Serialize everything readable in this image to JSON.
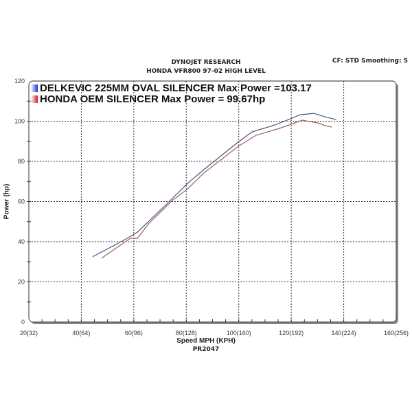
{
  "chart_data": {
    "type": "line",
    "title": "DYNOJET RESEARCH",
    "subtitle": "HONDA VFR800 97-02 HIGH LEVEL",
    "header_right": "CF: STD  Smoothing: 5",
    "xlabel": "Speed MPH (KPH)",
    "ylabel": "Power (hp)",
    "footer": "PR2047",
    "xlim": [
      20,
      160
    ],
    "ylim": [
      0,
      120
    ],
    "x_ticks": [
      "20(32)",
      "40(64)",
      "60(96)",
      "80(128)",
      "100(160)",
      "120(192)",
      "140(224)",
      "160(256)"
    ],
    "y_ticks": [
      "0",
      "20",
      "40",
      "60",
      "80",
      "100",
      "120"
    ],
    "grid": true,
    "legend_position": "top-left",
    "series": [
      {
        "name": "DELKEVIC 225MM OVAL SILENCER Max Power =103.17",
        "color": "#4a4f8a",
        "swatch": "#2030d0",
        "x": [
          44.3,
          56.1,
          61.4,
          71.8,
          76.3,
          80.2,
          86.7,
          99.8,
          105.1,
          113.7,
          119.7,
          123.4,
          128.6,
          132.8,
          137.2
        ],
        "y": [
          32.5,
          40.7,
          44.8,
          57.8,
          63.6,
          68.7,
          75.9,
          89.6,
          94.7,
          98.1,
          101.2,
          103.2,
          103.9,
          102.2,
          100.8
        ]
      },
      {
        "name": "HONDA OEM SILENCER Max Power = 99.67hp",
        "color": "#a0605a",
        "swatch": "#d02020",
        "x": [
          47.7,
          58.7,
          61.4,
          65.8,
          71.8,
          74.4,
          80.5,
          86.7,
          99.8,
          106.6,
          115.5,
          124.2,
          130.2,
          132.8,
          135.4
        ],
        "y": [
          31.8,
          41.7,
          41.7,
          49.2,
          56.8,
          60.2,
          66.3,
          74.2,
          87.5,
          93.0,
          96.4,
          100.5,
          99.1,
          97.8,
          97.1
        ]
      }
    ]
  }
}
